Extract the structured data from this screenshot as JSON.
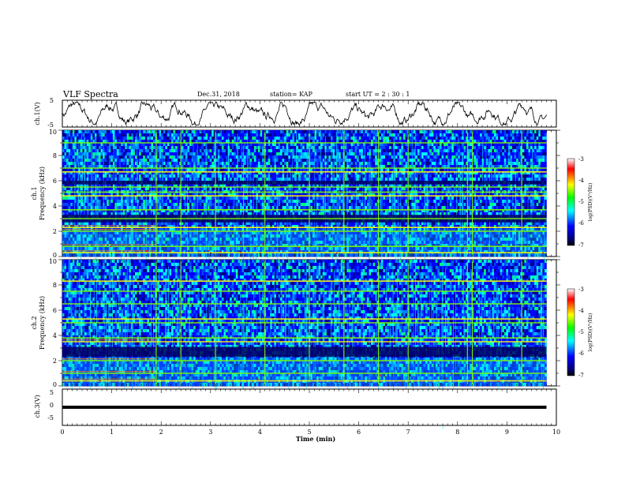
{
  "header": {
    "title": "VLF Spectra",
    "date": "Dec.31, 2018",
    "station": "station= KAP",
    "start": "start  UT =  2 : 30 : 1"
  },
  "x_axis": {
    "label": "Time  (min)",
    "ticks": [
      "0",
      "1",
      "2",
      "3",
      "4",
      "5",
      "6",
      "7",
      "8",
      "9",
      "10"
    ]
  },
  "colorbar": {
    "label": "log(PSD)(V²/Hz)",
    "ticks": [
      "-3",
      "-4",
      "-5",
      "-6",
      "-7"
    ],
    "colors": [
      "#ffffff",
      "#ff0000",
      "#ffff00",
      "#00ff00",
      "#00ffff",
      "#0000ff",
      "#000080",
      "#000000"
    ]
  },
  "chart_data": [
    {
      "type": "line",
      "panel": "ch1-waveform",
      "ylabel": "ch.1(V)",
      "ylim": [
        -5,
        5
      ],
      "yticks": [
        "5",
        "-5"
      ],
      "xlim": [
        0,
        10
      ],
      "series": [
        {
          "x_range": [
            0,
            9.8
          ],
          "amplitude_range": [
            -4.5,
            4.5
          ],
          "color": "#000000"
        }
      ]
    },
    {
      "type": "heatmap",
      "panel": "ch1-spectrogram",
      "ylabel": "ch.1\nFrequency  (kHz)",
      "xlabel": "Time  (min)",
      "ylim": [
        0,
        10
      ],
      "yticks": [
        "10",
        "8",
        "6",
        "4",
        "2",
        "0"
      ],
      "xlim": [
        0,
        10
      ],
      "data_x_range": [
        0,
        9.8
      ],
      "value_range": [
        -7,
        -3
      ],
      "horizontal_bands_khz": [
        0.3,
        0.8,
        2.0,
        2.3,
        3.0,
        3.7,
        4.8,
        5.1,
        5.5,
        6.7,
        7.0,
        9.0
      ],
      "dark_bands_khz": [
        [
          2.7,
          3.3
        ],
        [
          5.7,
          6.0
        ]
      ],
      "vertical_events_min": [
        1.9,
        2.4,
        3.1,
        4.1,
        5.0,
        5.7,
        6.4,
        7.0,
        8.2,
        8.3,
        9.3
      ],
      "value_change_min": 1.9
    },
    {
      "type": "heatmap",
      "panel": "ch2-spectrogram",
      "ylabel": "ch.2\nFrequency  (kHz)",
      "ylim": [
        0,
        10
      ],
      "yticks": [
        "10",
        "8",
        "6",
        "4",
        "2",
        "0"
      ],
      "xlim": [
        0,
        10
      ],
      "data_x_range": [
        0,
        9.8
      ],
      "value_range": [
        -7,
        -3
      ],
      "horizontal_bands_khz": [
        0.4,
        1.0,
        2.0,
        3.5,
        3.8,
        5.0,
        5.3,
        6.5,
        7.5,
        8.3
      ],
      "dark_bands_khz": [
        [
          2.3,
          3.1
        ]
      ],
      "vertical_events_min": [
        1.9,
        2.4,
        3.1,
        4.1,
        5.0,
        5.7,
        6.4,
        7.0,
        8.2,
        8.3,
        9.3
      ],
      "value_change_min": 1.9
    },
    {
      "type": "line",
      "panel": "ch3-waveform",
      "ylabel": "ch.3(V)",
      "ylim": [
        -5,
        5
      ],
      "yticks": [
        "5",
        "0",
        "-5"
      ],
      "xlim": [
        0,
        10
      ],
      "series": [
        {
          "x_range": [
            0,
            9.8
          ],
          "y_level": 0,
          "color": "#000000"
        }
      ]
    }
  ]
}
